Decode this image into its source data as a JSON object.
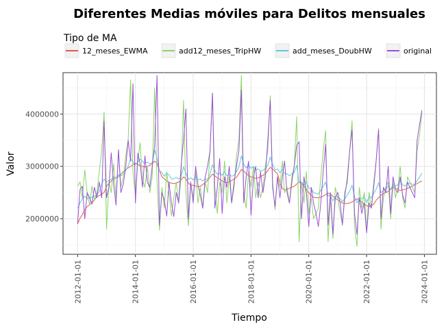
{
  "chart_data": {
    "type": "line",
    "title": "Diferentes Medias móviles para Delitos mensuales",
    "xlabel": "Tiempo",
    "ylabel": "Valor",
    "legend_title": "Tipo de MA",
    "legend_position": "top",
    "grid": true,
    "x_start": "2012-01",
    "x_end": "2023-12",
    "xlim": [
      "2011-07-01",
      "2024-06-01"
    ],
    "ylim": [
      1320000,
      4790000
    ],
    "x_ticks": [
      "2012-01-01",
      "2014-01-01",
      "2016-01-01",
      "2018-01-01",
      "2020-01-01",
      "2022-01-01",
      "2024-01-01"
    ],
    "y_ticks": [
      2000000,
      3000000,
      4000000
    ],
    "y_tick_labels": [
      "2000000",
      "3000000",
      "4000000"
    ],
    "series": [
      {
        "name": "12_meses_EWMA",
        "color": "#e8534a",
        "values": [
          1900000,
          2010000,
          2080000,
          2170000,
          2230000,
          2270000,
          2300000,
          2360000,
          2420000,
          2440000,
          2470000,
          2500000,
          2620000,
          2680000,
          2720000,
          2760000,
          2780000,
          2800000,
          2850000,
          2900000,
          2940000,
          2970000,
          3000000,
          3030000,
          3060000,
          3040000,
          3010000,
          3000000,
          2990000,
          3000000,
          3020000,
          3050000,
          3100000,
          3060000,
          2920000,
          2800000,
          2760000,
          2720000,
          2690000,
          2680000,
          2670000,
          2680000,
          2700000,
          2740000,
          2800000,
          2760000,
          2680000,
          2640000,
          2640000,
          2620000,
          2610000,
          2620000,
          2650000,
          2690000,
          2730000,
          2790000,
          2850000,
          2820000,
          2780000,
          2750000,
          2720000,
          2700000,
          2690000,
          2700000,
          2730000,
          2760000,
          2790000,
          2860000,
          2940000,
          2910000,
          2860000,
          2820000,
          2800000,
          2780000,
          2770000,
          2780000,
          2800000,
          2830000,
          2860000,
          2920000,
          2980000,
          2950000,
          2900000,
          2860000,
          2700000,
          2580000,
          2550000,
          2560000,
          2580000,
          2600000,
          2620000,
          2660000,
          2700000,
          2680000,
          2620000,
          2560000,
          2500000,
          2440000,
          2410000,
          2400000,
          2400000,
          2410000,
          2430000,
          2460000,
          2490000,
          2470000,
          2430000,
          2390000,
          2360000,
          2330000,
          2300000,
          2290000,
          2290000,
          2300000,
          2320000,
          2350000,
          2380000,
          2360000,
          2320000,
          2280000,
          2250000,
          2230000,
          2240000,
          2280000,
          2350000,
          2400000,
          2450000,
          2480000,
          2500000,
          2520000,
          2560000,
          2600000,
          2580000,
          2560000,
          2540000,
          2550000,
          2560000,
          2580000,
          2600000,
          2620000,
          2650000,
          2670000,
          2700000,
          2720000
        ],
        "values_mode": "monthly-from-x_start"
      },
      {
        "name": "add12_meses_TripHW",
        "color": "#87d662",
        "monthly_pattern_note": "",
        "values": [
          2620000,
          2700000,
          2400000,
          2930000,
          2500000,
          2260000,
          2620000,
          2350000,
          2500000,
          2900000,
          3300000,
          4040000,
          1800000,
          2700000,
          2500000,
          3050000,
          2400000,
          3300000,
          2600000,
          2800000,
          3200000,
          3500000,
          4650000,
          2900000,
          2450000,
          3100000,
          3450000,
          2750000,
          2600000,
          3000000,
          2500000,
          2800000,
          4500000,
          2700000,
          1780000,
          2600000,
          2200000,
          2900000,
          2500000,
          2050000,
          2400000,
          2700000,
          2300000,
          2800000,
          4260000,
          2500000,
          1860000,
          2650000,
          2400000,
          2900000,
          2300000,
          2600000,
          2200000,
          2700000,
          2500000,
          3300000,
          4400000,
          2600000,
          2100000,
          2700000,
          2500000,
          3100000,
          2300000,
          2800000,
          2300000,
          2600000,
          3200000,
          3500000,
          4740000,
          2500000,
          2200000,
          2900000,
          2600000,
          3000000,
          2400000,
          2700000,
          2400000,
          2600000,
          3000000,
          3300000,
          4350000,
          2700000,
          2170000,
          2800000,
          2600000,
          3100000,
          2500000,
          2600000,
          2300000,
          2800000,
          3000000,
          3950000,
          1560000,
          2700000,
          2300000,
          2900000,
          2100000,
          2400000,
          2000000,
          2100000,
          2200000,
          2800000,
          3300000,
          3680000,
          1560000,
          2400000,
          1620000,
          2600000,
          2400000,
          2100000,
          1900000,
          2400000,
          2800000,
          3300000,
          3870000,
          1850000,
          1470000,
          2600000,
          2200000,
          2500000,
          1750000,
          2500000,
          2200000,
          2700000,
          3100000,
          3720000,
          1800000,
          2400000,
          2600000,
          2700000,
          2000000,
          2700000,
          2400000,
          2600000,
          3000000,
          2400000,
          2200000,
          2800000,
          2700000,
          2600000,
          2500000,
          3300000,
          3600000,
          4040000
        ],
        "values_mode": "monthly-from-x_start"
      },
      {
        "name": "add_meses_DoubHW",
        "color": "#5dc6e0",
        "values": [
          2200000,
          2300000,
          2380000,
          2430000,
          2380000,
          2400000,
          2410000,
          2430000,
          2460000,
          2520000,
          2660000,
          2760000,
          2700000,
          2730000,
          2750000,
          2800000,
          2780000,
          2840000,
          2820000,
          2850000,
          2920000,
          3000000,
          3150000,
          3080000,
          3030000,
          3080000,
          3140000,
          3090000,
          3060000,
          3080000,
          3050000,
          3070000,
          3310000,
          3150000,
          2920000,
          2880000,
          2810000,
          2870000,
          2840000,
          2760000,
          2760000,
          2790000,
          2760000,
          2800000,
          2990000,
          2870000,
          2750000,
          2780000,
          2740000,
          2800000,
          2740000,
          2760000,
          2720000,
          2760000,
          2750000,
          2850000,
          3030000,
          2920000,
          2850000,
          2870000,
          2830000,
          2900000,
          2820000,
          2850000,
          2810000,
          2830000,
          2900000,
          2990000,
          3200000,
          3040000,
          2970000,
          3020000,
          2960000,
          3000000,
          2930000,
          2950000,
          2910000,
          2920000,
          2960000,
          3020000,
          3180000,
          3040000,
          2930000,
          2950000,
          2880000,
          2940000,
          2860000,
          2860000,
          2820000,
          2860000,
          2880000,
          3020000,
          2700000,
          2700000,
          2640000,
          2700000,
          2580000,
          2580000,
          2500000,
          2480000,
          2470000,
          2540000,
          2620000,
          2700000,
          2430000,
          2450000,
          2340000,
          2420000,
          2410000,
          2380000,
          2330000,
          2380000,
          2450000,
          2530000,
          2640000,
          2420000,
          2300000,
          2400000,
          2380000,
          2420000,
          2310000,
          2420000,
          2400000,
          2480000,
          2560000,
          2690000,
          2500000,
          2530000,
          2580000,
          2620000,
          2560000,
          2650000,
          2620000,
          2660000,
          2720000,
          2650000,
          2620000,
          2680000,
          2680000,
          2660000,
          2650000,
          2730000,
          2790000,
          2870000
        ],
        "values_mode": "monthly-from-x_start"
      },
      {
        "name": "original",
        "color": "#9b4fd6",
        "values": [
          1900000,
          2560000,
          2620000,
          2000000,
          2500000,
          2400000,
          2280000,
          2600000,
          2400000,
          2700000,
          2400000,
          3860000,
          2400000,
          2620000,
          3260000,
          2650000,
          2260000,
          3320000,
          2500000,
          2660000,
          3000000,
          3500000,
          3100000,
          4580000,
          2300000,
          3250000,
          3050000,
          2600000,
          3200000,
          2700000,
          2600000,
          3000000,
          3400000,
          4740000,
          1880000,
          2500000,
          2360000,
          2050000,
          2700000,
          2300000,
          2040000,
          2500000,
          2300000,
          3000000,
          3500000,
          4100000,
          2000000,
          2700000,
          2300000,
          3000000,
          2650000,
          2440000,
          2200000,
          2800000,
          3000000,
          3300000,
          4400000,
          2200000,
          2600000,
          3150000,
          2100000,
          2800000,
          2600000,
          3000000,
          2300000,
          2700000,
          3000000,
          3300000,
          4460000,
          2300000,
          2800000,
          3100000,
          2070000,
          2800000,
          3000000,
          2400000,
          2900000,
          2500000,
          2800000,
          3500000,
          4260000,
          2600000,
          2230000,
          2800000,
          2400000,
          2800000,
          3100000,
          2500000,
          2300000,
          2700000,
          3000000,
          3400000,
          3470000,
          2000000,
          2800000,
          2500000,
          1850000,
          2600000,
          2300000,
          2100000,
          1850000,
          2300000,
          2900000,
          3420000,
          1880000,
          2500000,
          1700000,
          2400000,
          2500000,
          2300000,
          1880000,
          2500000,
          2700000,
          3300000,
          3700000,
          2100000,
          1700000,
          2400000,
          2100000,
          2300000,
          1730000,
          2300000,
          2200000,
          2600000,
          3100000,
          3700000,
          2000000,
          2600000,
          2500000,
          3000000,
          2100000,
          2800000,
          2550000,
          2500000,
          2800000,
          2450000,
          2300000,
          2700000,
          2600000,
          2500000,
          2400000,
          3500000,
          3800000,
          4070000
        ],
        "values_mode": "monthly-from-x_start"
      }
    ]
  }
}
